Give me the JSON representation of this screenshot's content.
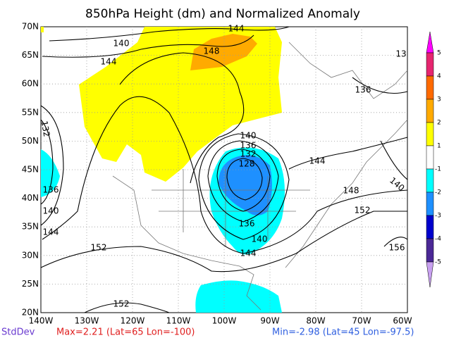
{
  "title": "850hPa Height (dm) and Normalized Anomaly",
  "lat_labels": [
    "70N",
    "65N",
    "60N",
    "55N",
    "50N",
    "45N",
    "40N",
    "35N",
    "30N",
    "25N",
    "20N"
  ],
  "lon_labels": [
    "140W",
    "130W",
    "120W",
    "110W",
    "100W",
    "90W",
    "80W",
    "70W",
    "60W"
  ],
  "contour_labels": [
    "140",
    "144",
    "148",
    "144",
    "13",
    "136",
    "132",
    "140",
    "136",
    "132",
    "128",
    "144",
    "136",
    "148",
    "140",
    "140",
    "152",
    "144",
    "136",
    "140",
    "152",
    "144",
    "156",
    "152"
  ],
  "colorbar": [
    "5",
    "4",
    "3",
    "2",
    "1",
    "-1",
    "-2",
    "-3",
    "-4",
    "-5"
  ],
  "footer": {
    "field": "StdDev",
    "max": "Max=2.21 (Lat=65 Lon=-100)",
    "min": "Min=-2.98 (Lat=45 Lon=-97.5)"
  }
}
